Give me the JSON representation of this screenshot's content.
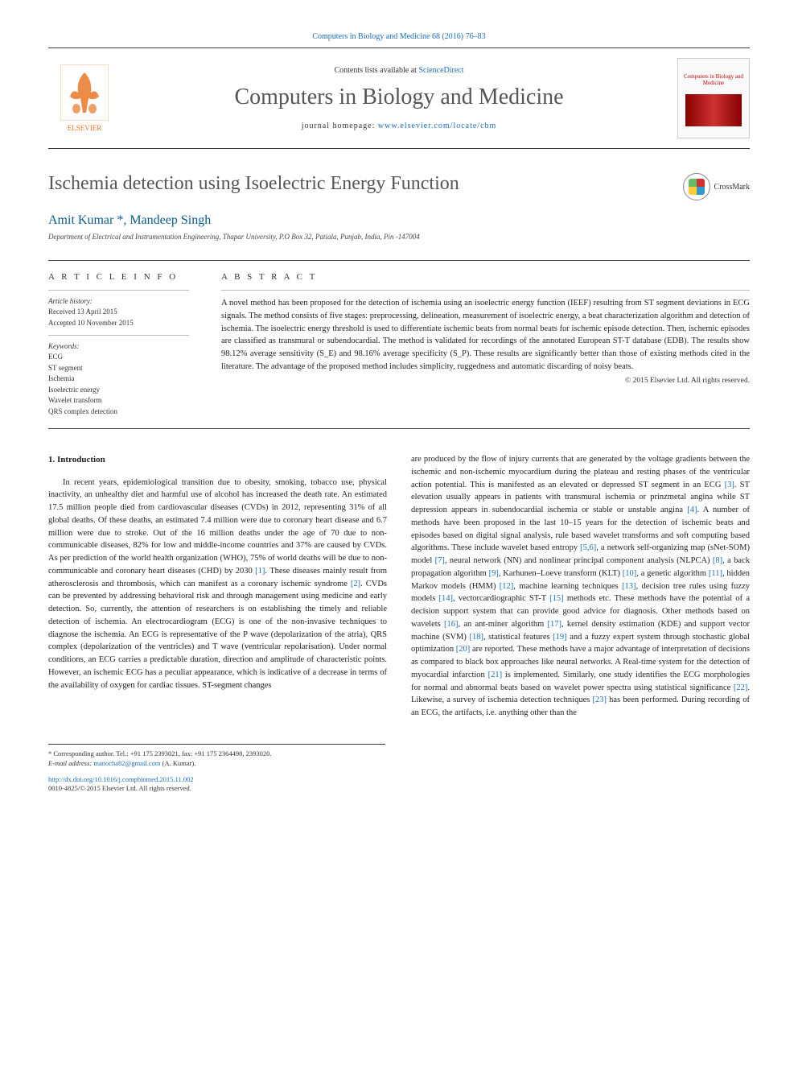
{
  "colors": {
    "link": "#1a6eb8",
    "title": "#555555",
    "author": "#0a5c8a",
    "elsevier_orange": "#e97826",
    "text": "#222222",
    "journal_red": "#b00000"
  },
  "fonts": {
    "body_size_pt": 10.5,
    "title_size_pt": 24,
    "journal_name_size_pt": 28,
    "heading_letterspacing": 3
  },
  "header": {
    "citation": "Computers in Biology and Medicine 68 (2016) 76–83",
    "contents_label": "Contents lists available at ",
    "contents_link": "ScienceDirect",
    "journal_name": "Computers in Biology and Medicine",
    "homepage_label": "journal homepage: ",
    "homepage_url": "www.elsevier.com/locate/cbm",
    "publisher_logo_text": "ELSEVIER",
    "cover_title": "Computers in Biology and Medicine"
  },
  "crossmark": {
    "label": "CrossMark"
  },
  "article": {
    "title": "Ischemia detection using Isoelectric Energy Function",
    "authors": "Amit Kumar *, Mandeep Singh",
    "affiliation": "Department of Electrical and Instrumentation Engineering, Thapar University, P.O Box 32, Patiala, Punjab, India, Pin -147004"
  },
  "info": {
    "heading": "A R T I C L E   I N F O",
    "history_label": "Article history:",
    "received": "Received 13 April 2015",
    "accepted": "Accepted 10 November 2015",
    "keywords_label": "Keywords:",
    "keywords": [
      "ECG",
      "ST segment",
      "Ischemia",
      "Isoelectric energy",
      "Wavelet transform",
      "QRS complex detection"
    ]
  },
  "abstract": {
    "heading": "A B S T R A C T",
    "text": "A novel method has been proposed for the detection of ischemia using an isoelectric energy function (IEEF) resulting from ST segment deviations in ECG signals. The method consists of five stages: preprocessing, delineation, measurement of isoelectric energy, a beat characterization algorithm and detection of ischemia. The isoelectric energy threshold is used to differentiate ischemic beats from normal beats for ischemic episode detection. Then, ischemic episodes are classified as transmural or subendocardial. The method is validated for recordings of the annotated European ST-T database (EDB). The results show 98.12% average sensitivity (S_E) and 98.16% average specificity (S_P). These results are significantly better than those of existing methods cited in the literature. The advantage of the proposed method includes simplicity, ruggedness and automatic discarding of noisy beats.",
    "copyright": "© 2015 Elsevier Ltd. All rights reserved."
  },
  "body": {
    "section1_heading": "1.  Introduction",
    "col1": "In recent years, epidemiological transition due to obesity, smoking, tobacco use, physical inactivity, an unhealthy diet and harmful use of alcohol has increased the death rate. An estimated 17.5 million people died from cardiovascular diseases (CVDs) in 2012, representing 31% of all global deaths. Of these deaths, an estimated 7.4 million were due to coronary heart disease and 6.7 million were due to stroke. Out of the 16 million deaths under the age of 70 due to non-communicable diseases, 82% for low and middle-income countries and 37% are caused by CVDs. As per prediction of the world health organization (WHO), 75% of world deaths will be due to non-communicable and coronary heart diseases (CHD) by 2030 [1]. These diseases mainly result from atherosclerosis and thrombosis, which can manifest as a coronary ischemic syndrome [2]. CVDs can be prevented by addressing behavioral risk and through management using medicine and early detection. So, currently, the attention of researchers is on establishing the timely and reliable detection of ischemia. An electrocardiogram (ECG) is one of the non-invasive techniques to diagnose the ischemia. An ECG is representative of the P wave (depolarization of the atria), QRS complex (depolarization of the ventricles) and T wave (ventricular repolarisation). Under normal conditions, an ECG carries a predictable duration, direction and amplitude of characteristic points. However, an ischemic ECG has a peculiar appearance, which is indicative of a decrease in terms of the availability of oxygen for cardiac tissues. ST-segment changes",
    "col2": "are produced by the flow of injury currents that are generated by the voltage gradients between the ischemic and non-ischemic myocardium during the plateau and resting phases of the ventricular action potential. This is manifested as an elevated or depressed ST segment in an ECG [3]. ST elevation usually appears in patients with transmural ischemia or prinzmetal angina while ST depression appears in subendocardial ischemia or stable or unstable angina [4]. A number of methods have been proposed in the last 10–15 years for the detection of ischemic beats and episodes based on digital signal analysis, rule based wavelet transforms and soft computing based algorithms. These include wavelet based entropy [5,6], a network self-organizing map (sNet-SOM) model [7], neural network (NN) and nonlinear principal component analysis (NLPCA) [8], a back propagation algorithm [9], Karhunen–Loeve transform (KLT) [10], a genetic algorithm [11], hidden Markov models (HMM) [12], machine learning techniques [13], decision tree rules using fuzzy models [14], vectorcardiographic ST-T [15] methods etc. These methods have the potential of a decision support system that can provide good advice for diagnosis. Other methods based on wavelets [16], an ant-miner algorithm [17], kernel density estimation (KDE) and support vector machine (SVM) [18], statistical features [19] and a fuzzy expert system through stochastic global optimization [20] are reported. These methods have a major advantage of interpretation of decisions as compared to black box approaches like neural networks. A Real-time system for the detection of myocardial infarction [21] is implemented. Similarly, one study identifies the ECG morphologies for normal and abnormal beats based on wavelet power spectra using statistical significance [22]. Likewise, a survey of ischemia detection techniques [23] has been performed. During recording of an ECG, the artifacts, i.e. anything other than the",
    "refs_col1": [
      "[1]",
      "[2]"
    ],
    "refs_col2": [
      "[3]",
      "[4]",
      "[5,6]",
      "[7]",
      "[8]",
      "[9]",
      "[10]",
      "[11]",
      "[12]",
      "[13]",
      "[14]",
      "[15]",
      "[16]",
      "[17]",
      "[18]",
      "[19]",
      "[20]",
      "[21]",
      "[22]",
      "[23]"
    ]
  },
  "footnotes": {
    "corr": "* Corresponding author. Tel.: +91 175 2393021, fax: +91 175 2364498, 2393020.",
    "email_label": "E-mail address: ",
    "email": "manocha82@gmail.com",
    "email_who": " (A. Kumar).",
    "doi": "http://dx.doi.org/10.1016/j.compbiomed.2015.11.002",
    "issn_copy": "0010-4825/© 2015 Elsevier Ltd. All rights reserved."
  }
}
